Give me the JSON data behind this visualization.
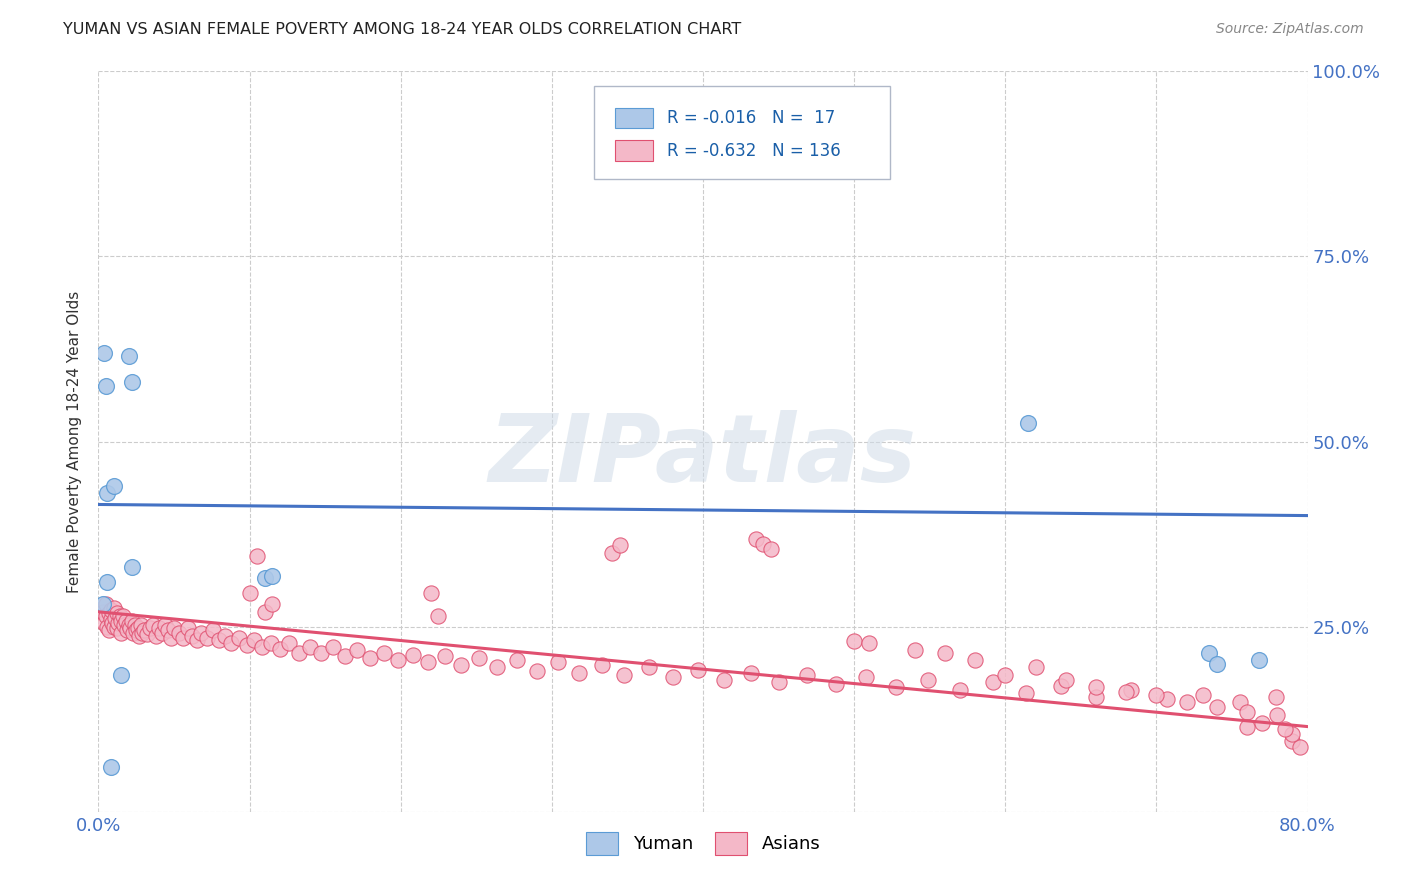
{
  "title": "YUMAN VS ASIAN FEMALE POVERTY AMONG 18-24 YEAR OLDS CORRELATION CHART",
  "source": "Source: ZipAtlas.com",
  "ylabel": "Female Poverty Among 18-24 Year Olds",
  "xlim": [
    0.0,
    0.8
  ],
  "ylim": [
    0.0,
    1.0
  ],
  "xtick_vals": [
    0.0,
    0.1,
    0.2,
    0.3,
    0.4,
    0.5,
    0.6,
    0.7,
    0.8
  ],
  "xticklabels": [
    "0.0%",
    "",
    "",
    "",
    "",
    "",
    "",
    "",
    "80.0%"
  ],
  "ytick_vals": [
    0.0,
    0.25,
    0.5,
    0.75,
    1.0
  ],
  "yticklabels_right": [
    "",
    "25.0%",
    "50.0%",
    "75.0%",
    "100.0%"
  ],
  "legend_r_yuman": "-0.016",
  "legend_n_yuman": "17",
  "legend_r_asians": "-0.632",
  "legend_n_asians": "136",
  "yuman_color": "#adc8e8",
  "yuman_edge_color": "#5b9bd5",
  "asians_color": "#f4b8c8",
  "asians_edge_color": "#e05070",
  "yuman_line_color": "#4472c4",
  "asians_line_color": "#e05070",
  "watermark": "ZIPatlas",
  "background_color": "#ffffff",
  "yuman_trend_x": [
    0.0,
    0.8
  ],
  "yuman_trend_y": [
    0.415,
    0.4
  ],
  "asians_trend_x": [
    0.0,
    0.8
  ],
  "asians_trend_y": [
    0.27,
    0.115
  ],
  "yuman_x": [
    0.004,
    0.005,
    0.006,
    0.006,
    0.01,
    0.015,
    0.02,
    0.022,
    0.022,
    0.11,
    0.115,
    0.615,
    0.735,
    0.74,
    0.768,
    0.003,
    0.008
  ],
  "yuman_y": [
    0.62,
    0.575,
    0.43,
    0.31,
    0.44,
    0.185,
    0.615,
    0.58,
    0.33,
    0.316,
    0.318,
    0.525,
    0.215,
    0.2,
    0.205,
    0.28,
    0.06
  ],
  "asian_x": [
    0.003,
    0.004,
    0.005,
    0.005,
    0.006,
    0.007,
    0.007,
    0.008,
    0.008,
    0.009,
    0.01,
    0.01,
    0.011,
    0.012,
    0.012,
    0.013,
    0.014,
    0.015,
    0.015,
    0.016,
    0.017,
    0.018,
    0.019,
    0.02,
    0.021,
    0.022,
    0.023,
    0.024,
    0.025,
    0.026,
    0.027,
    0.028,
    0.029,
    0.03,
    0.032,
    0.034,
    0.036,
    0.038,
    0.04,
    0.042,
    0.044,
    0.046,
    0.048,
    0.05,
    0.053,
    0.056,
    0.059,
    0.062,
    0.065,
    0.068,
    0.072,
    0.076,
    0.08,
    0.084,
    0.088,
    0.093,
    0.098,
    0.103,
    0.108,
    0.114,
    0.12,
    0.126,
    0.133,
    0.14,
    0.147,
    0.155,
    0.163,
    0.171,
    0.18,
    0.189,
    0.198,
    0.208,
    0.218,
    0.229,
    0.24,
    0.252,
    0.264,
    0.277,
    0.29,
    0.304,
    0.318,
    0.333,
    0.348,
    0.364,
    0.38,
    0.397,
    0.414,
    0.432,
    0.45,
    0.469,
    0.488,
    0.508,
    0.528,
    0.549,
    0.57,
    0.592,
    0.614,
    0.637,
    0.66,
    0.683,
    0.707,
    0.731,
    0.755,
    0.779,
    0.1,
    0.105,
    0.11,
    0.115,
    0.22,
    0.225,
    0.34,
    0.345,
    0.435,
    0.44,
    0.445,
    0.5,
    0.51,
    0.54,
    0.56,
    0.58,
    0.6,
    0.62,
    0.64,
    0.66,
    0.68,
    0.7,
    0.72,
    0.74,
    0.76,
    0.78,
    0.79,
    0.795,
    0.79,
    0.785,
    0.77,
    0.76
  ],
  "asian_y": [
    0.27,
    0.255,
    0.28,
    0.265,
    0.25,
    0.268,
    0.245,
    0.26,
    0.272,
    0.255,
    0.275,
    0.25,
    0.262,
    0.268,
    0.248,
    0.255,
    0.265,
    0.258,
    0.242,
    0.265,
    0.252,
    0.258,
    0.245,
    0.252,
    0.248,
    0.258,
    0.242,
    0.252,
    0.245,
    0.248,
    0.238,
    0.252,
    0.242,
    0.245,
    0.24,
    0.248,
    0.252,
    0.238,
    0.248,
    0.242,
    0.252,
    0.245,
    0.235,
    0.248,
    0.242,
    0.235,
    0.248,
    0.238,
    0.232,
    0.242,
    0.235,
    0.245,
    0.232,
    0.238,
    0.228,
    0.235,
    0.225,
    0.232,
    0.222,
    0.228,
    0.22,
    0.228,
    0.215,
    0.222,
    0.215,
    0.222,
    0.21,
    0.218,
    0.208,
    0.215,
    0.205,
    0.212,
    0.202,
    0.21,
    0.198,
    0.208,
    0.195,
    0.205,
    0.19,
    0.202,
    0.188,
    0.198,
    0.185,
    0.195,
    0.182,
    0.192,
    0.178,
    0.188,
    0.175,
    0.185,
    0.172,
    0.182,
    0.168,
    0.178,
    0.165,
    0.175,
    0.16,
    0.17,
    0.155,
    0.165,
    0.152,
    0.158,
    0.148,
    0.155,
    0.295,
    0.345,
    0.27,
    0.28,
    0.295,
    0.265,
    0.35,
    0.36,
    0.368,
    0.362,
    0.355,
    0.23,
    0.228,
    0.218,
    0.215,
    0.205,
    0.185,
    0.195,
    0.178,
    0.168,
    0.162,
    0.158,
    0.148,
    0.142,
    0.135,
    0.13,
    0.095,
    0.088,
    0.105,
    0.112,
    0.12,
    0.115
  ]
}
